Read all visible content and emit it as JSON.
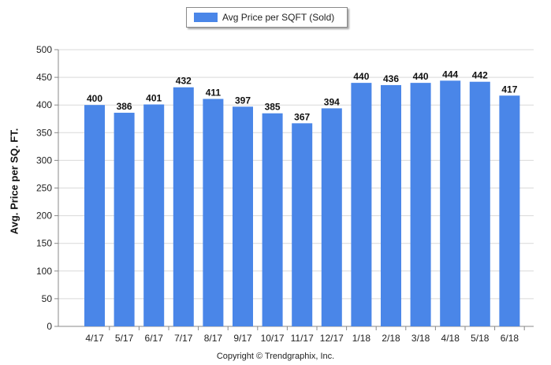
{
  "chart_data": {
    "type": "bar",
    "categories": [
      "4/17",
      "5/17",
      "6/17",
      "7/17",
      "8/17",
      "9/17",
      "10/17",
      "11/17",
      "12/17",
      "1/18",
      "2/18",
      "3/18",
      "4/18",
      "5/18",
      "6/18"
    ],
    "series": [
      {
        "name": "Avg Price per SQFT (Sold)",
        "values": [
          400,
          386,
          401,
          432,
          411,
          397,
          385,
          367,
          394,
          440,
          436,
          440,
          444,
          442,
          417
        ],
        "color": "#4a86e8"
      }
    ],
    "ylabel": "Avg. Price per SQ. FT.",
    "xlabel": "",
    "ylim": [
      0,
      500
    ],
    "yticks": [
      0,
      50,
      100,
      150,
      200,
      250,
      300,
      350,
      400,
      450,
      500
    ],
    "grid": true,
    "legend_position": "top-center",
    "data_labels": true
  },
  "footer": {
    "copyright": "Copyright © Trendgraphix, Inc."
  }
}
